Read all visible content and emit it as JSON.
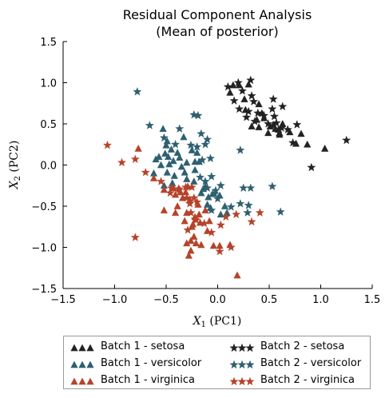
{
  "chart_data": {
    "type": "scatter",
    "title": "Residual Component Analysis",
    "subtitle": "(Mean of posterior)",
    "xlabel_main": "X",
    "xlabel_sub": "1",
    "xlabel_suffix": " (PC1)",
    "ylabel_main": "X",
    "ylabel_sub": "2",
    "ylabel_suffix": " (PC2)",
    "xlim": [
      -1.5,
      1.5
    ],
    "ylim": [
      -1.5,
      1.5
    ],
    "xticks": [
      -1.5,
      -1.0,
      -0.5,
      0.0,
      0.5,
      1.0,
      1.5
    ],
    "yticks": [
      -1.5,
      -1.0,
      -0.5,
      0.0,
      0.5,
      1.0,
      1.5
    ],
    "xtick_labels": [
      "−1.5",
      "−1.0",
      "−0.5",
      "0.0",
      "0.5",
      "1.0",
      "1.5"
    ],
    "ytick_labels": [
      "−1.5",
      "−1.0",
      "−0.5",
      "0.0",
      "0.5",
      "1.0",
      "1.5"
    ],
    "grid": false,
    "legend_placement": "below",
    "series": [
      {
        "name": "Batch 1 - setosa",
        "color": "#222222",
        "marker": "triangle",
        "points": [
          [
            0.15,
            0.97
          ],
          [
            0.3,
            0.98
          ],
          [
            0.21,
            0.97
          ],
          [
            0.12,
            0.88
          ],
          [
            0.26,
            0.8
          ],
          [
            0.27,
            0.67
          ],
          [
            0.4,
            0.74
          ],
          [
            0.43,
            0.63
          ],
          [
            0.51,
            0.47
          ],
          [
            0.49,
            0.39
          ],
          [
            0.6,
            0.39
          ],
          [
            0.63,
            0.5
          ],
          [
            0.59,
            0.43
          ],
          [
            0.56,
            0.44
          ],
          [
            0.54,
            0.49
          ],
          [
            0.38,
            0.55
          ],
          [
            0.4,
            0.46
          ],
          [
            0.33,
            0.47
          ],
          [
            0.45,
            0.57
          ],
          [
            0.76,
            0.26
          ],
          [
            0.81,
            0.38
          ],
          [
            0.87,
            0.25
          ],
          [
            1.04,
            0.2
          ],
          [
            0.7,
            0.4
          ],
          [
            0.6,
            0.37
          ]
        ]
      },
      {
        "name": "Batch 2 - setosa",
        "color": "#222222",
        "marker": "star",
        "points": [
          [
            0.2,
            1.0
          ],
          [
            0.32,
            1.03
          ],
          [
            0.1,
            0.95
          ],
          [
            0.24,
            0.9
          ],
          [
            0.33,
            0.84
          ],
          [
            0.35,
            0.77
          ],
          [
            0.54,
            0.8
          ],
          [
            0.63,
            0.71
          ],
          [
            0.53,
            0.68
          ],
          [
            0.3,
            0.65
          ],
          [
            0.39,
            0.63
          ],
          [
            0.45,
            0.6
          ],
          [
            0.55,
            0.59
          ],
          [
            0.21,
            0.68
          ],
          [
            0.16,
            0.78
          ],
          [
            0.28,
            0.58
          ],
          [
            0.36,
            0.53
          ],
          [
            0.49,
            0.5
          ],
          [
            0.57,
            0.51
          ],
          [
            0.62,
            0.45
          ],
          [
            0.77,
            0.49
          ],
          [
            0.73,
            0.27
          ],
          [
            0.91,
            -0.03
          ],
          [
            1.25,
            0.3
          ],
          [
            0.68,
            0.43
          ]
        ]
      },
      {
        "name": "Batch 1 - versicolor",
        "color": "#2e6070",
        "marker": "triangle",
        "points": [
          [
            -0.53,
            0.44
          ],
          [
            -0.49,
            0.29
          ],
          [
            -0.5,
            0.24
          ],
          [
            -0.45,
            0.19
          ],
          [
            -0.39,
            0.15
          ],
          [
            -0.33,
            0.34
          ],
          [
            -0.25,
            0.18
          ],
          [
            -0.2,
            0.15
          ],
          [
            -0.37,
            0.09
          ],
          [
            -0.43,
            0.05
          ],
          [
            -0.48,
            0.1
          ],
          [
            -0.51,
            0.14
          ],
          [
            -0.57,
            0.1
          ],
          [
            -0.6,
            0.07
          ],
          [
            -0.55,
            0.0
          ],
          [
            -0.47,
            0.01
          ],
          [
            -0.35,
            -0.02
          ],
          [
            -0.3,
            0.03
          ],
          [
            -0.22,
            0.04
          ],
          [
            -0.22,
            -0.06
          ],
          [
            -0.18,
            0.04
          ],
          [
            -0.32,
            -0.09
          ],
          [
            -0.3,
            -0.17
          ],
          [
            -0.42,
            -0.13
          ],
          [
            -0.49,
            -0.09
          ],
          [
            -0.62,
            -0.1
          ],
          [
            -0.23,
            -0.2
          ],
          [
            -0.12,
            -0.26
          ],
          [
            -0.05,
            -0.35
          ],
          [
            0.02,
            -0.37
          ],
          [
            -0.1,
            -0.48
          ],
          [
            -0.07,
            -0.52
          ],
          [
            0.07,
            -0.5
          ],
          [
            0.09,
            -0.58
          ],
          [
            -0.14,
            -0.29
          ],
          [
            -0.16,
            -0.34
          ],
          [
            -0.09,
            -0.39
          ],
          [
            0.03,
            -0.6
          ],
          [
            -0.52,
            -0.25
          ],
          [
            -0.44,
            -0.22
          ]
        ]
      },
      {
        "name": "Batch 2 - versicolor",
        "color": "#2e6070",
        "marker": "star",
        "points": [
          [
            -0.78,
            0.89
          ],
          [
            -0.66,
            0.48
          ],
          [
            -0.52,
            0.33
          ],
          [
            -0.37,
            0.44
          ],
          [
            -0.23,
            0.61
          ],
          [
            -0.19,
            0.6
          ],
          [
            -0.16,
            0.38
          ],
          [
            -0.1,
            0.31
          ],
          [
            -0.12,
            0.25
          ],
          [
            -0.26,
            0.24
          ],
          [
            -0.2,
            0.22
          ],
          [
            -0.41,
            0.25
          ],
          [
            -0.07,
            0.08
          ],
          [
            -0.15,
            0.06
          ],
          [
            -0.06,
            -0.14
          ],
          [
            -0.12,
            -0.2
          ],
          [
            0.03,
            -0.25
          ],
          [
            -0.02,
            -0.31
          ],
          [
            -0.03,
            -0.35
          ],
          [
            0.0,
            -0.41
          ],
          [
            -0.06,
            -0.55
          ],
          [
            0.13,
            -0.51
          ],
          [
            0.22,
            -0.47
          ],
          [
            0.3,
            -0.49
          ],
          [
            0.29,
            -0.58
          ],
          [
            0.61,
            -0.57
          ],
          [
            0.25,
            -0.28
          ],
          [
            0.32,
            -0.28
          ],
          [
            0.53,
            -0.26
          ],
          [
            0.22,
            0.18
          ],
          [
            -0.17,
            -0.15
          ],
          [
            -0.1,
            -0.28
          ]
        ]
      },
      {
        "name": "Batch 1 - virginica",
        "color": "#b5432a",
        "marker": "triangle",
        "points": [
          [
            -0.77,
            0.2
          ],
          [
            -0.62,
            -0.16
          ],
          [
            -0.52,
            -0.3
          ],
          [
            -0.43,
            -0.28
          ],
          [
            -0.41,
            -0.36
          ],
          [
            -0.36,
            -0.33
          ],
          [
            -0.31,
            -0.33
          ],
          [
            -0.39,
            -0.5
          ],
          [
            -0.52,
            -0.55
          ],
          [
            -0.3,
            -0.58
          ],
          [
            -0.32,
            -0.68
          ],
          [
            -0.25,
            -0.75
          ],
          [
            -0.19,
            -0.48
          ],
          [
            -0.22,
            -0.63
          ],
          [
            -0.26,
            -0.92
          ],
          [
            -0.26,
            -1.04
          ],
          [
            -0.28,
            -1.1
          ],
          [
            -0.23,
            -0.87
          ],
          [
            -0.16,
            -0.97
          ],
          [
            -0.17,
            -0.7
          ],
          [
            -0.08,
            -0.68
          ],
          [
            -0.04,
            -0.98
          ],
          [
            0.02,
            -0.98
          ],
          [
            0.12,
            -0.97
          ],
          [
            0.19,
            -1.34
          ],
          [
            -0.12,
            -0.55
          ],
          [
            -0.21,
            -0.95
          ],
          [
            -0.3,
            -0.95
          ],
          [
            -0.27,
            -0.42
          ],
          [
            -0.41,
            -0.58
          ],
          [
            -0.24,
            -0.72
          ],
          [
            -0.1,
            -0.8
          ],
          [
            -0.34,
            -0.4
          ],
          [
            -0.18,
            -0.6
          ],
          [
            -0.29,
            -0.26
          ]
        ]
      },
      {
        "name": "Batch 2 - virginica",
        "color": "#b5432a",
        "marker": "star",
        "points": [
          [
            -1.07,
            0.24
          ],
          [
            -0.93,
            0.03
          ],
          [
            -0.8,
            0.07
          ],
          [
            -0.7,
            -0.09
          ],
          [
            -0.55,
            -0.2
          ],
          [
            -0.45,
            -0.28
          ],
          [
            -0.38,
            -0.29
          ],
          [
            -0.37,
            -0.3
          ],
          [
            -0.31,
            -0.27
          ],
          [
            -0.25,
            -0.27
          ],
          [
            -0.3,
            -0.4
          ],
          [
            -0.27,
            -0.47
          ],
          [
            -0.23,
            -0.4
          ],
          [
            -0.26,
            -0.58
          ],
          [
            -0.22,
            -0.66
          ],
          [
            -0.29,
            -0.79
          ],
          [
            -0.21,
            -0.67
          ],
          [
            -0.13,
            -0.71
          ],
          [
            -0.06,
            -0.82
          ],
          [
            0.03,
            -0.73
          ],
          [
            0.08,
            -0.63
          ],
          [
            0.18,
            -0.6
          ],
          [
            0.13,
            -1.0
          ],
          [
            0.02,
            -1.05
          ],
          [
            0.33,
            -0.69
          ],
          [
            0.41,
            -0.58
          ],
          [
            -0.8,
            -0.88
          ],
          [
            -0.46,
            -0.34
          ],
          [
            -0.2,
            -0.45
          ]
        ]
      }
    ]
  }
}
